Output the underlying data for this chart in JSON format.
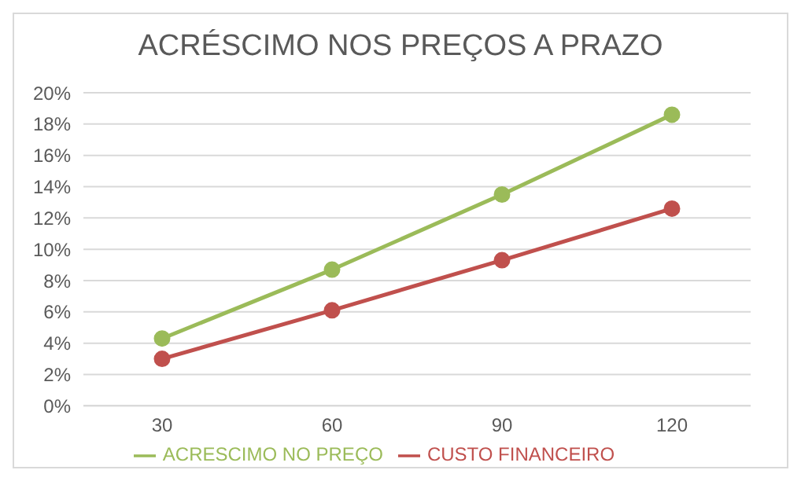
{
  "chart_data": {
    "type": "line",
    "title": "ACRÉSCIMO NOS PREÇOS A PRAZO",
    "categories": [
      "30",
      "60",
      "90",
      "120"
    ],
    "series": [
      {
        "name": "CUSTO FINANCEIRO",
        "color": "#c0504d",
        "values": [
          3.0,
          6.1,
          9.3,
          12.6
        ]
      },
      {
        "name": "ACRESCIMO NO PREÇO",
        "color": "#9bbb59",
        "values": [
          4.3,
          8.7,
          13.5,
          18.6
        ]
      }
    ],
    "ylim": [
      0,
      20
    ],
    "yticks": [
      {
        "value": 0,
        "label": "0%"
      },
      {
        "value": 2,
        "label": "2%"
      },
      {
        "value": 4,
        "label": "4%"
      },
      {
        "value": 6,
        "label": "6%"
      },
      {
        "value": 8,
        "label": "8%"
      },
      {
        "value": 10,
        "label": "10%"
      },
      {
        "value": 12,
        "label": "12%"
      },
      {
        "value": 14,
        "label": "14%"
      },
      {
        "value": 16,
        "label": "16%"
      },
      {
        "value": 18,
        "label": "18%"
      },
      {
        "value": 20,
        "label": "20%"
      }
    ],
    "grid": "y",
    "legend": "bottom",
    "marker": "circle",
    "line_style": "solid"
  }
}
